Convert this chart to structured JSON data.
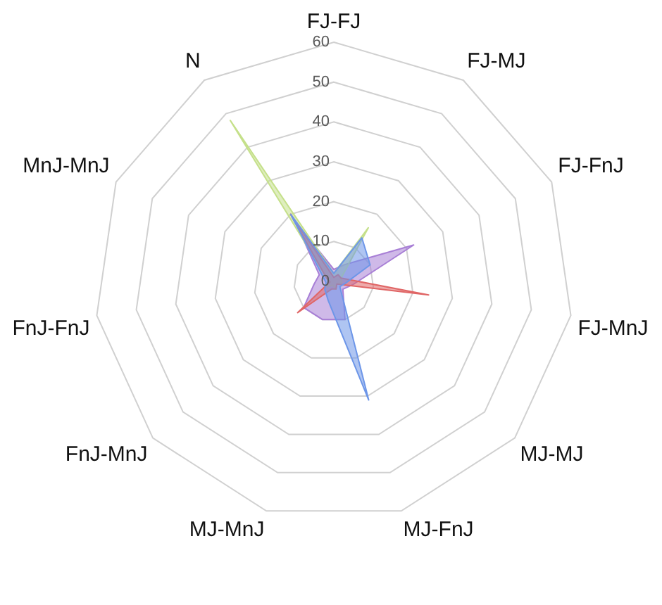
{
  "chart_data": {
    "type": "radar",
    "categories": [
      "FJ-FJ",
      "FJ-MJ",
      "FJ-FnJ",
      "FJ-MnJ",
      "MJ-MJ",
      "MJ-FnJ",
      "MJ-MnJ",
      "FnJ-MnJ",
      "FnJ-FnJ",
      "MnJ-MnJ",
      "N"
    ],
    "ylim": [
      0,
      60
    ],
    "yticks": [
      0,
      10,
      20,
      30,
      40,
      50,
      60
    ],
    "grid": true,
    "legend": false,
    "marker": "none",
    "series": [
      {
        "color": "#6d96e8",
        "values": [
          2,
          13,
          10,
          3,
          2,
          31,
          5,
          3,
          2,
          3,
          20
        ]
      },
      {
        "color": "#e06666",
        "values": [
          1,
          2,
          2,
          24,
          1,
          2,
          2,
          12,
          1,
          2,
          20
        ]
      },
      {
        "color": "#c5e08a",
        "values": [
          2,
          16,
          2,
          2,
          1,
          2,
          1,
          2,
          1,
          2,
          48
        ]
      },
      {
        "color": "#a87fd6",
        "values": [
          3,
          5,
          22,
          5,
          3,
          10,
          10,
          10,
          5,
          4,
          18
        ]
      }
    ]
  }
}
